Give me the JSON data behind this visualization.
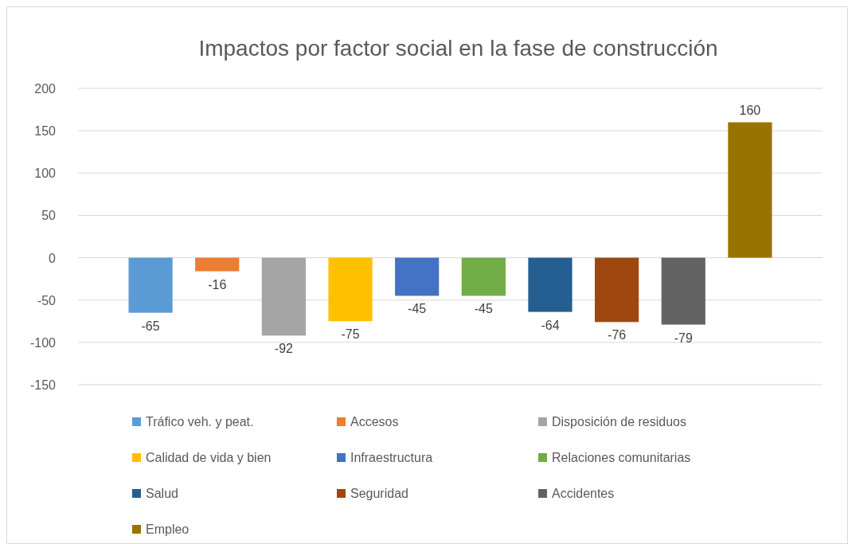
{
  "chart_data": {
    "type": "bar",
    "title": "Impactos por factor social en la fase de construcción",
    "categories": [
      null
    ],
    "series": [
      {
        "name": "Tráfico veh. y peat.",
        "color": "#5b9bd5",
        "values": [
          -65
        ]
      },
      {
        "name": "Accesos",
        "color": "#ed7d31",
        "values": [
          -16
        ]
      },
      {
        "name": "Disposición de residuos",
        "color": "#a5a5a5",
        "values": [
          -92
        ]
      },
      {
        "name": "Calidad de vida y bien",
        "color": "#ffc000",
        "values": [
          -75
        ]
      },
      {
        "name": "Infraestructura",
        "color": "#4472c4",
        "values": [
          -45
        ]
      },
      {
        "name": "Relaciones comunitarias",
        "color": "#70ad47",
        "values": [
          -45
        ]
      },
      {
        "name": "Salud",
        "color": "#255e91",
        "values": [
          -64
        ]
      },
      {
        "name": "Seguridad",
        "color": "#9e480e",
        "values": [
          -76
        ]
      },
      {
        "name": "Accidentes",
        "color": "#636363",
        "values": [
          -79
        ]
      },
      {
        "name": "Empleo",
        "color": "#997300",
        "values": [
          160
        ]
      }
    ],
    "ylim": [
      -150,
      200
    ],
    "yticks": [
      -150,
      -100,
      -50,
      0,
      50,
      100,
      150,
      200
    ],
    "grid": "y",
    "legend": "bottom",
    "data_labels": true
  }
}
